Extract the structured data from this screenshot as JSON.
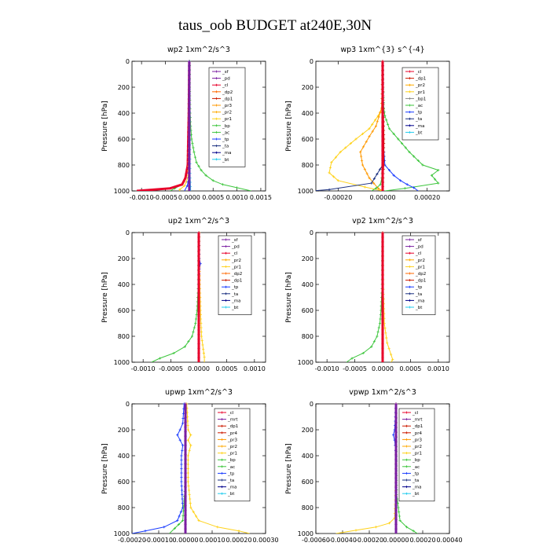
{
  "title": "taus_oob  BUDGET at240E,30N",
  "colors": {
    "sf": "#7a1fa2",
    "mrt": "#7a1fa2",
    "pd": "#7a1fa2",
    "cl": "#e8002a",
    "dp2": "#ff6a00",
    "dp1": "#cc1a00",
    "pr4": "#cc1a00",
    "pr3": "#ff9900",
    "pr2": "#ffaa00",
    "pr1": "#ffd21a",
    "bp": "#3ec63e",
    "ac": "#3ec63e",
    "tp": "#1a3cff",
    "ta": "#1a2f80",
    "ma": "#00008b",
    "bt": "#22ccee"
  },
  "chart_data": [
    {
      "type": "line",
      "title": "wp2   1xm^2/s^3",
      "ylabel": "Pressure [hPa]",
      "ylim": [
        1000,
        0
      ],
      "yticks": [
        0,
        200,
        400,
        600,
        800,
        1000
      ],
      "xlim": [
        -0.0012,
        0.0016
      ],
      "xtick_labels": [
        "-0.0010",
        "-0.0005",
        "0.0000",
        "0.0005",
        "0.0010",
        "0.0015"
      ],
      "xtick_values": [
        -0.001,
        -0.0005,
        0,
        0.0005,
        0.001,
        0.0015
      ],
      "legend": [
        "_sf",
        "_pd",
        "_cl",
        "_dp2",
        "_dp1",
        "_pr3",
        "_pr2",
        "_pr1",
        "_bp",
        "_ac",
        "_tp",
        "_ta",
        "_ma",
        "_bt"
      ],
      "series": [
        {
          "name": "_ac",
          "color": "#3ec63e",
          "p": [
            0,
            200,
            400,
            500,
            600,
            700,
            780,
            840,
            880,
            920,
            950,
            975,
            1000
          ],
          "v": [
            1e-05,
            1e-05,
            2e-05,
            3e-05,
            5e-05,
            0.0001,
            0.00015,
            0.00025,
            0.00035,
            0.0005,
            0.0007,
            0.001,
            0.0013
          ]
        },
        {
          "name": "_bp",
          "color": "#3ec63e",
          "p": [
            0,
            400,
            800,
            900,
            950,
            980,
            1000
          ],
          "v": [
            0,
            -1e-05,
            -3e-05,
            -8e-05,
            -0.00015,
            -0.0003,
            -0.0004
          ]
        },
        {
          "name": "_cl",
          "color": "#e8002a",
          "p": [
            0,
            400,
            800,
            900,
            950,
            980,
            1000
          ],
          "v": [
            0,
            -1e-05,
            -3e-05,
            -8e-05,
            -0.00015,
            -0.0004,
            -0.0011
          ]
        },
        {
          "name": "_pr1",
          "color": "#ffd21a",
          "p": [
            0,
            600,
            880,
            930,
            960,
            990,
            1000
          ],
          "v": [
            0,
            0,
            -2e-05,
            -6e-05,
            -0.0001,
            -0.0002,
            -0.0002
          ]
        },
        {
          "name": "_tp",
          "color": "#1a3cff",
          "p": [
            0,
            600,
            900,
            960,
            1000
          ],
          "v": [
            0,
            0,
            -1e-05,
            -4e-05,
            -0.0001
          ]
        },
        {
          "name": "_bt",
          "color": "#22ccee",
          "p": [
            0,
            500,
            900,
            1000
          ],
          "v": [
            0,
            1e-05,
            2e-05,
            3e-05
          ]
        },
        {
          "name": "_sf",
          "color": "#7a1fa2",
          "p": [
            0,
            1000
          ],
          "v": [
            0,
            0
          ]
        }
      ]
    },
    {
      "type": "line",
      "title": "wp3   1xm^{3} s^{-4}",
      "ylabel": "Pressure [hPa]",
      "ylim": [
        1000,
        0
      ],
      "yticks": [
        0,
        200,
        400,
        600,
        800,
        1000
      ],
      "xlim": [
        -0.0003,
        0.0003
      ],
      "xtick_labels": [
        "-0.00020",
        "0.00000",
        "0.00020"
      ],
      "xtick_values": [
        -0.0002,
        0,
        0.0002
      ],
      "legend": [
        "_cl",
        "_dp1",
        "_pr2",
        "_pr1",
        "_bp1",
        "_ac",
        "_tp",
        "_ta",
        "_ma",
        "_bt"
      ],
      "series": [
        {
          "name": "_ac",
          "color": "#3ec63e",
          "p": [
            0,
            200,
            360,
            420,
            520,
            600,
            700,
            800,
            840,
            880,
            940,
            980,
            1000
          ],
          "v": [
            0,
            2e-06,
            5e-06,
            1e-05,
            3e-05,
            7e-05,
            0.00012,
            0.00018,
            0.00025,
            0.00022,
            0.00025,
            0.0001,
            1e-05
          ]
        },
        {
          "name": "_pr1",
          "color": "#ffd21a",
          "p": [
            0,
            360,
            420,
            520,
            600,
            700,
            780,
            860,
            920,
            970,
            1000
          ],
          "v": [
            0,
            0,
            -2e-05,
            -6e-05,
            -0.00012,
            -0.00019,
            -0.00023,
            -0.00024,
            -0.0002,
            -8e-05,
            0
          ]
        },
        {
          "name": "_pr2",
          "color": "#ff9900",
          "p": [
            0,
            360,
            500,
            580,
            700,
            800,
            900,
            980,
            1000
          ],
          "v": [
            0,
            -5e-06,
            -3e-05,
            -6e-05,
            -0.0001,
            -9e-05,
            -6e-05,
            -2e-05,
            0
          ]
        },
        {
          "name": "_tp",
          "color": "#1a3cff",
          "p": [
            0,
            600,
            800,
            880,
            920,
            950,
            975,
            1000
          ],
          "v": [
            0,
            2e-06,
            1e-05,
            5e-05,
            8e-05,
            0.00011,
            0.00014,
            0.00016
          ]
        },
        {
          "name": "_bp1",
          "color": "#3ec63e",
          "p": [
            0,
            800,
            900,
            950,
            980,
            1000
          ],
          "v": [
            0,
            0,
            -4e-06,
            -1e-05,
            -3e-05,
            -5e-05
          ]
        },
        {
          "name": "_ta",
          "color": "#1a2f80",
          "p": [
            0,
            800,
            940,
            990,
            1000
          ],
          "v": [
            0,
            0,
            -5e-05,
            -0.00024,
            -0.00032
          ]
        },
        {
          "name": "_dp1",
          "color": "#cc1a00",
          "p": [
            0,
            200,
            400,
            600,
            800,
            1000
          ],
          "v": [
            0,
            2e-06,
            4e-06,
            6e-06,
            5e-06,
            0
          ]
        },
        {
          "name": "_cl",
          "color": "#e8002a",
          "p": [
            0,
            1000
          ],
          "v": [
            0,
            0
          ]
        }
      ]
    },
    {
      "type": "line",
      "title": "up2   1xm^2/s^3",
      "ylabel": "Pressure [hPa]",
      "ylim": [
        1000,
        0
      ],
      "yticks": [
        0,
        200,
        400,
        600,
        800,
        1000
      ],
      "xlim": [
        -0.0012,
        0.0012
      ],
      "xtick_labels": [
        "-0.0010",
        "-0.0005",
        "0.0000",
        "0.0005",
        "0.0010"
      ],
      "xtick_values": [
        -0.001,
        -0.0005,
        0,
        0.0005,
        0.001
      ],
      "legend": [
        "_sf",
        "_pd",
        "_cl",
        "_pr2",
        "_pr1",
        "_dp2",
        "_dp1",
        "_tp",
        "_ta",
        "_ma",
        "_bt"
      ],
      "series": [
        {
          "name": "_pr1",
          "color": "#ffd21a",
          "p": [
            0,
            200,
            400,
            600,
            800,
            900,
            960,
            1000
          ],
          "v": [
            1e-05,
            1e-05,
            2e-05,
            3e-05,
            5e-05,
            8e-05,
            0.0001,
            0.0001
          ]
        },
        {
          "name": "_dp2",
          "color": "#3ec63e",
          "p": [
            0,
            400,
            600,
            700,
            800,
            880,
            930,
            970,
            1000
          ],
          "v": [
            0,
            -1e-05,
            -3e-05,
            -6e-05,
            -0.00012,
            -0.00025,
            -0.00045,
            -0.0007,
            -0.00085
          ]
        },
        {
          "name": "_tp",
          "color": "#1a3cff",
          "p": [
            0,
            200,
            240,
            280,
            400,
            1000
          ],
          "v": [
            0,
            1e-05,
            3e-05,
            1e-05,
            0,
            0
          ]
        },
        {
          "name": "_cl",
          "color": "#e8002a",
          "p": [
            0,
            1000
          ],
          "v": [
            0,
            0
          ]
        }
      ]
    },
    {
      "type": "line",
      "title": "vp2   1xm^2/s^3",
      "ylabel": "Pressure [hPa]",
      "ylim": [
        1000,
        0
      ],
      "yticks": [
        0,
        200,
        400,
        600,
        800,
        1000
      ],
      "xlim": [
        -0.0012,
        0.0012
      ],
      "xtick_labels": [
        "-0.0010",
        "-0.0005",
        "0.0000",
        "0.0005",
        "0.0010"
      ],
      "xtick_values": [
        -0.001,
        -0.0005,
        0,
        0.0005,
        0.001
      ],
      "legend": [
        "_sf",
        "_pd",
        "_cl",
        "_pr2",
        "_pr1",
        "_dp2",
        "_dp1",
        "_tp",
        "_ta",
        "_ma",
        "_bt"
      ],
      "series": [
        {
          "name": "_pr1",
          "color": "#ffd21a",
          "p": [
            0,
            400,
            700,
            850,
            940,
            980,
            1000
          ],
          "v": [
            0,
            1e-05,
            3e-05,
            8e-05,
            0.00015,
            0.00018,
            0.00015
          ]
        },
        {
          "name": "_dp2",
          "color": "#3ec63e",
          "p": [
            0,
            400,
            600,
            700,
            800,
            880,
            930,
            970,
            1000
          ],
          "v": [
            0,
            -1e-05,
            -3e-05,
            -5e-05,
            -0.0001,
            -0.0002,
            -0.00035,
            -0.00055,
            -0.00065
          ]
        },
        {
          "name": "_cl",
          "color": "#e8002a",
          "p": [
            0,
            1000
          ],
          "v": [
            0,
            0
          ]
        }
      ]
    },
    {
      "type": "line",
      "title": "upwp   1xm^2/s^3",
      "ylabel": "Pressure [hPa]",
      "ylim": [
        1000,
        0
      ],
      "yticks": [
        0,
        200,
        400,
        600,
        800,
        1000
      ],
      "xlim": [
        -0.0002,
        0.0003
      ],
      "xtick_labels": [
        "-0.00020",
        "-0.00010",
        "0.00000",
        "0.00010",
        "0.00020",
        "0.00030"
      ],
      "xtick_values": [
        -0.0002,
        -0.0001,
        0,
        0.0001,
        0.0002,
        0.0003
      ],
      "legend": [
        "_cl",
        "_mrt",
        "_dp1",
        "_pr4",
        "_pr3",
        "_pr2",
        "_pr1",
        "_bp",
        "_ac",
        "_tp",
        "_ta",
        "_ma",
        "_bt"
      ],
      "series": [
        {
          "name": "_tp",
          "color": "#1a3cff",
          "p": [
            0,
            150,
            200,
            240,
            280,
            320,
            400,
            600,
            800,
            900,
            950,
            980,
            1000
          ],
          "v": [
            -5e-06,
            -1e-05,
            -2e-05,
            -3e-05,
            -2e-05,
            -1e-05,
            -1.5e-05,
            -1.5e-05,
            -1e-05,
            -3e-05,
            -8e-05,
            -0.00015,
            -0.0002
          ]
        },
        {
          "name": "_pr1",
          "color": "#ffd21a",
          "p": [
            0,
            200,
            240,
            280,
            320,
            400,
            600,
            800,
            900,
            950,
            980,
            1000
          ],
          "v": [
            5e-06,
            1e-05,
            2e-05,
            1e-05,
            2e-05,
            1e-05,
            1e-05,
            2e-05,
            5e-05,
            0.00012,
            0.0002,
            0.00024
          ]
        },
        {
          "name": "_ac",
          "color": "#3ec63e",
          "p": [
            0,
            600,
            900,
            960,
            1000
          ],
          "v": [
            0,
            0,
            -1e-05,
            -4e-05,
            -6e-05
          ]
        },
        {
          "name": "_cl",
          "color": "#e8002a",
          "p": [
            0,
            1000
          ],
          "v": [
            0,
            0
          ]
        },
        {
          "name": "_mrt",
          "color": "#7a1fa2",
          "p": [
            0,
            1000
          ],
          "v": [
            0,
            0
          ]
        }
      ]
    },
    {
      "type": "line",
      "title": "vpwp   1xm^2/s^3",
      "ylabel": "Pressure [hPa]",
      "ylim": [
        1000,
        0
      ],
      "yticks": [
        0,
        200,
        400,
        600,
        800,
        1000
      ],
      "xlim": [
        -0.0006,
        0.0004
      ],
      "xtick_labels": [
        "-0.00060",
        "-0.00040",
        "-0.00020",
        "0.00000",
        "0.00020",
        "0.00040"
      ],
      "xtick_values": [
        -0.0006,
        -0.0004,
        -0.0002,
        0,
        0.0002,
        0.0004
      ],
      "legend": [
        "_cl",
        "_mrt",
        "_dp1",
        "_pr4",
        "_pr3",
        "_pr2",
        "_pr1",
        "_bp",
        "_ac",
        "_tp",
        "_ta",
        "_ma",
        "_bt"
      ],
      "series": [
        {
          "name": "_pr1",
          "color": "#ffd21a",
          "p": [
            0,
            600,
            880,
            920,
            950,
            975,
            1000
          ],
          "v": [
            0,
            0,
            -1e-05,
            -5e-05,
            -0.00015,
            -0.0003,
            -0.00045
          ]
        },
        {
          "name": "_ac",
          "color": "#3ec63e",
          "p": [
            0,
            700,
            900,
            950,
            980,
            1000
          ],
          "v": [
            0,
            5e-06,
            3e-05,
            8e-05,
            0.00013,
            0.00016
          ]
        },
        {
          "name": "_tp",
          "color": "#1a3cff",
          "p": [
            0,
            200,
            240,
            280,
            400,
            1000
          ],
          "v": [
            0,
            -1e-05,
            -2e-05,
            -1e-05,
            0,
            0
          ]
        },
        {
          "name": "_cl",
          "color": "#e8002a",
          "p": [
            0,
            1000
          ],
          "v": [
            0,
            0
          ]
        },
        {
          "name": "_mrt",
          "color": "#7a1fa2",
          "p": [
            0,
            1000
          ],
          "v": [
            0,
            0
          ]
        }
      ]
    }
  ]
}
